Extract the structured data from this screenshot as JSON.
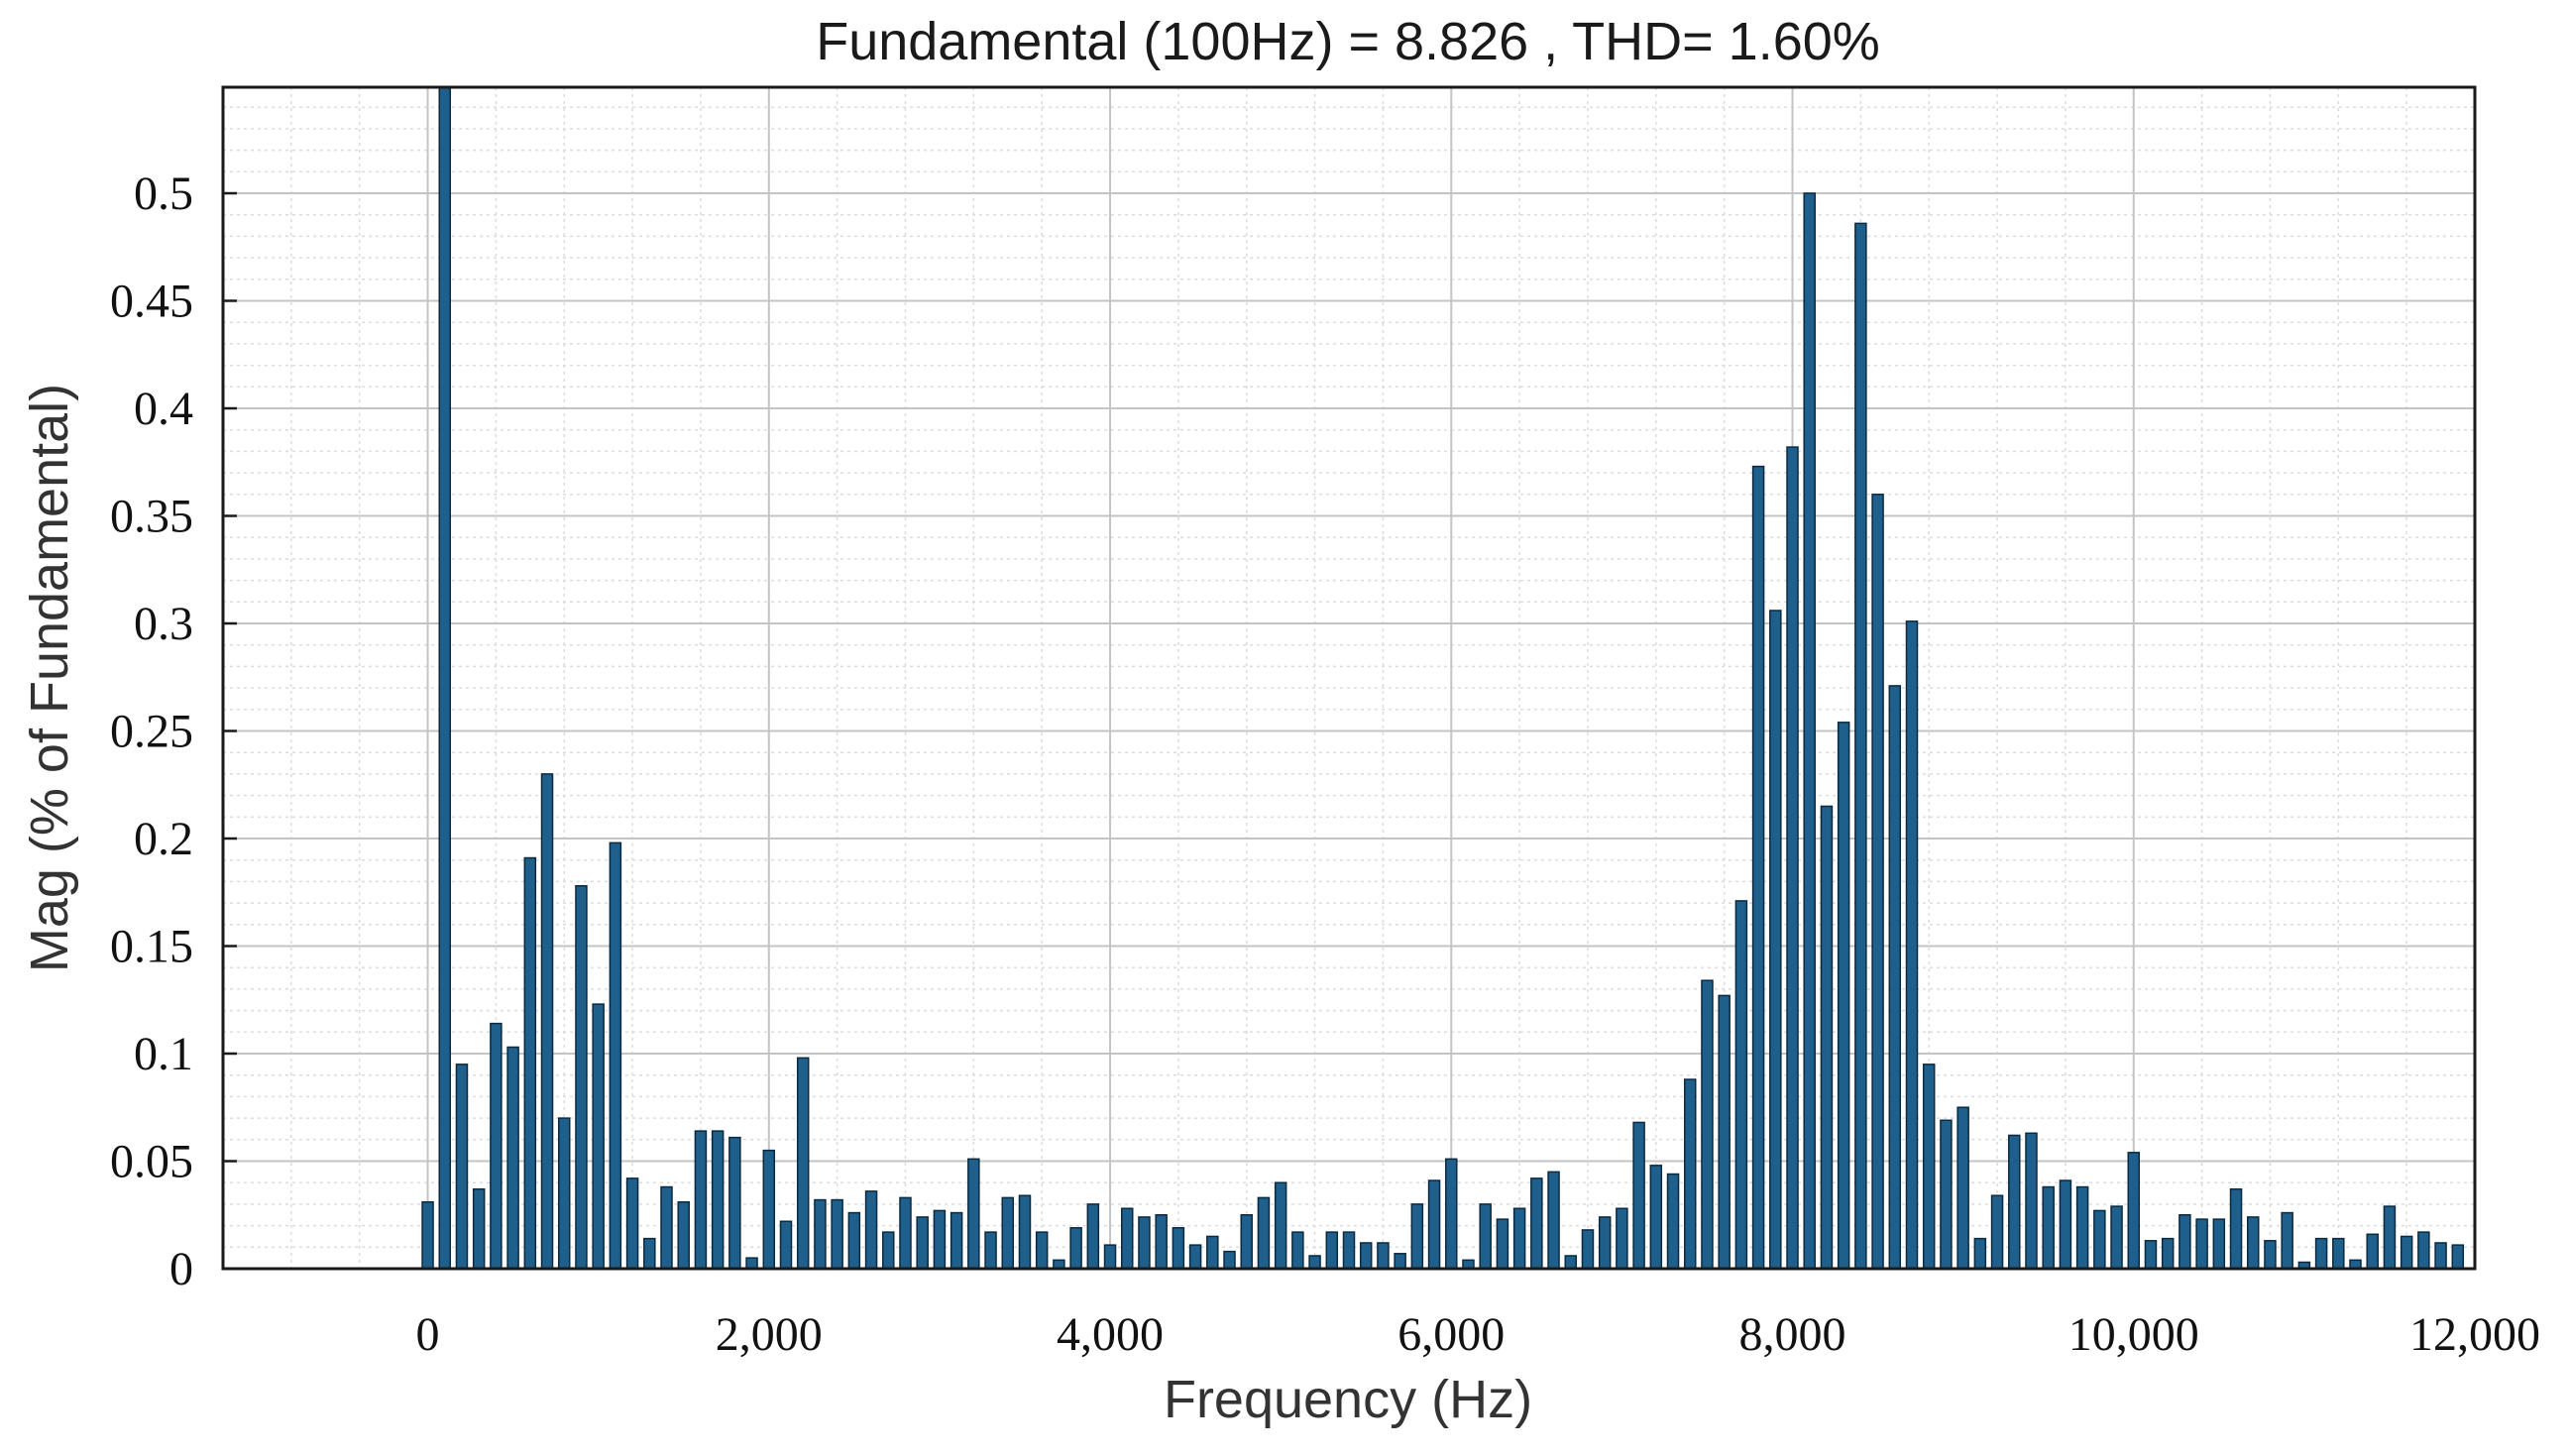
{
  "chart_data": {
    "type": "bar",
    "title": "Fundamental (100Hz) = 8.826 , THD= 1.60%",
    "xlabel": "Frequency (Hz)",
    "ylabel": "Mag (% of Fundamental)",
    "xlim": [
      -1200,
      12000
    ],
    "ylim": [
      0,
      0.55
    ],
    "xticks": [
      0,
      2000,
      4000,
      6000,
      8000,
      10000,
      12000
    ],
    "xtick_labels": [
      "0",
      "2,000",
      "4,000",
      "6,000",
      "8,000",
      "10,000",
      "12,000"
    ],
    "yticks": [
      0,
      0.05,
      0.1,
      0.15,
      0.2,
      0.25,
      0.3,
      0.35,
      0.4,
      0.45,
      0.5
    ],
    "ytick_labels": [
      "0",
      "0.05",
      "0.1",
      "0.15",
      "0.2",
      "0.25",
      "0.3",
      "0.35",
      "0.4",
      "0.45",
      "0.5"
    ],
    "grid": true,
    "bar_color": "#1f5f8b",
    "bar_edge_color": "#0b2a40",
    "x_start": 0,
    "x_step": 100,
    "values": [
      0.031,
      0.55,
      0.095,
      0.037,
      0.114,
      0.103,
      0.191,
      0.23,
      0.07,
      0.178,
      0.123,
      0.198,
      0.042,
      0.014,
      0.038,
      0.031,
      0.064,
      0.064,
      0.061,
      0.005,
      0.055,
      0.022,
      0.098,
      0.032,
      0.032,
      0.026,
      0.036,
      0.017,
      0.033,
      0.024,
      0.027,
      0.026,
      0.051,
      0.017,
      0.033,
      0.034,
      0.017,
      0.004,
      0.019,
      0.03,
      0.011,
      0.028,
      0.024,
      0.025,
      0.019,
      0.011,
      0.015,
      0.008,
      0.025,
      0.033,
      0.04,
      0.017,
      0.006,
      0.017,
      0.017,
      0.012,
      0.012,
      0.007,
      0.03,
      0.041,
      0.051,
      0.004,
      0.03,
      0.023,
      0.028,
      0.042,
      0.045,
      0.006,
      0.018,
      0.024,
      0.028,
      0.068,
      0.048,
      0.044,
      0.088,
      0.134,
      0.127,
      0.171,
      0.373,
      0.306,
      0.382,
      0.5,
      0.215,
      0.254,
      0.486,
      0.36,
      0.271,
      0.301,
      0.095,
      0.069,
      0.075,
      0.014,
      0.034,
      0.062,
      0.063,
      0.038,
      0.041,
      0.038,
      0.027,
      0.029,
      0.054,
      0.013,
      0.014,
      0.025,
      0.023,
      0.023,
      0.037,
      0.024,
      0.013,
      0.026,
      0.003,
      0.014,
      0.014,
      0.004,
      0.016,
      0.029,
      0.015,
      0.017,
      0.012,
      0.011
    ]
  }
}
